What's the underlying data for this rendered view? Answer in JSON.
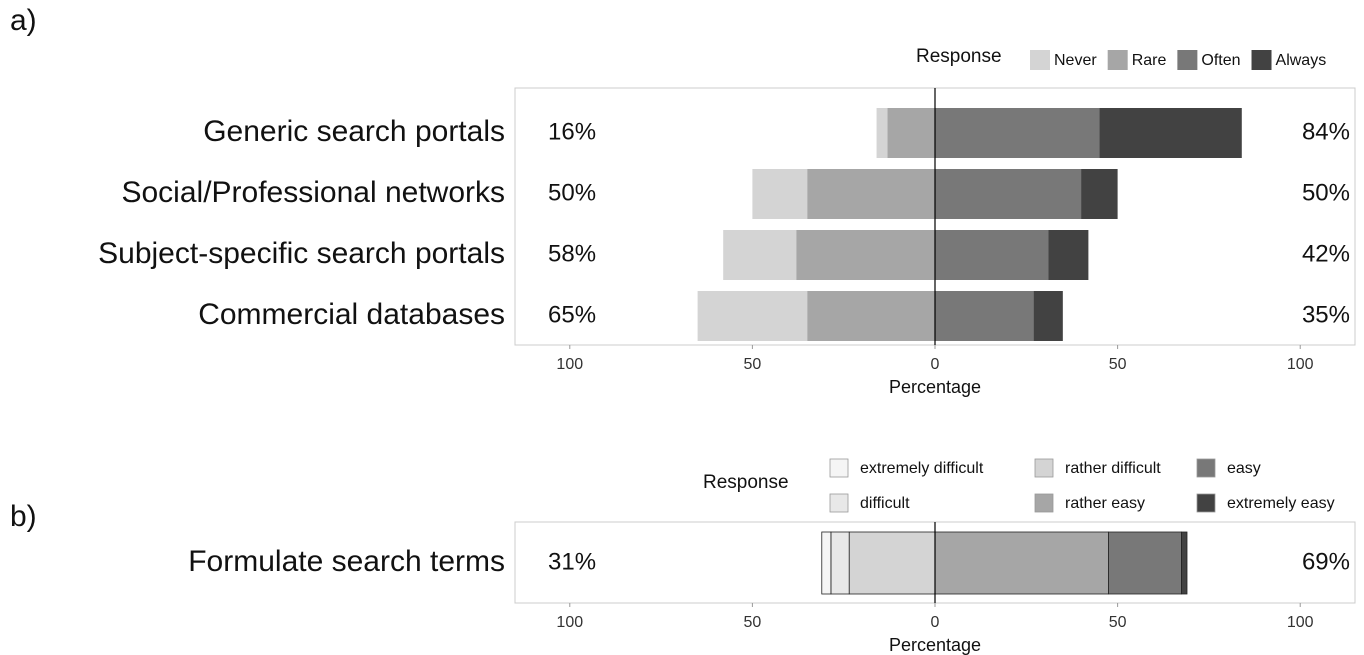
{
  "chart_data": [
    {
      "type": "diverging_bar",
      "panel_label": "a)",
      "legend_title": "Response",
      "xlabel": "Percentage",
      "categories": [
        "Generic search portals",
        "Social/Professional networks",
        "Subject-specific search portals",
        "Commercial databases"
      ],
      "left_labels": [
        "16%",
        "50%",
        "58%",
        "65%"
      ],
      "right_labels": [
        "84%",
        "50%",
        "42%",
        "35%"
      ],
      "series": [
        {
          "name": "Never",
          "color": "#d4d4d4",
          "values": [
            -3,
            -15,
            -20,
            -30
          ]
        },
        {
          "name": "Rare",
          "color": "#a6a6a6",
          "values": [
            -13,
            -35,
            -38,
            -35
          ]
        },
        {
          "name": "Often",
          "color": "#787878",
          "values": [
            45,
            40,
            31,
            27
          ]
        },
        {
          "name": "Always",
          "color": "#424242",
          "values": [
            39,
            10,
            11,
            8
          ]
        }
      ],
      "xlim": [
        -115,
        115
      ],
      "xticks": [
        {
          "value": -100,
          "label": "100"
        },
        {
          "value": -50,
          "label": "50"
        },
        0,
        50,
        {
          "value": 100,
          "label": "100"
        }
      ]
    },
    {
      "type": "diverging_bar",
      "panel_label": "b)",
      "legend_title": "Response",
      "xlabel": "Percentage",
      "categories": [
        "Formulate search terms"
      ],
      "left_labels": [
        "31%"
      ],
      "right_labels": [
        "69%"
      ],
      "series": [
        {
          "name": "extremely difficult",
          "color": "#f5f5f5",
          "values": [
            -2.5
          ]
        },
        {
          "name": "difficult",
          "color": "#e8e8e8",
          "values": [
            -5
          ]
        },
        {
          "name": "rather difficult",
          "color": "#d4d4d4",
          "values": [
            -23.5
          ]
        },
        {
          "name": "rather easy",
          "color": "#a6a6a6",
          "values": [
            47.5
          ]
        },
        {
          "name": "easy",
          "color": "#787878",
          "values": [
            20
          ]
        },
        {
          "name": "extremely easy",
          "color": "#424242",
          "values": [
            1.5
          ]
        }
      ],
      "xlim": [
        -115,
        115
      ],
      "xticks": [
        {
          "value": -100,
          "label": "100"
        },
        {
          "value": -50,
          "label": "50"
        },
        0,
        50,
        {
          "value": 100,
          "label": "100"
        }
      ]
    }
  ]
}
